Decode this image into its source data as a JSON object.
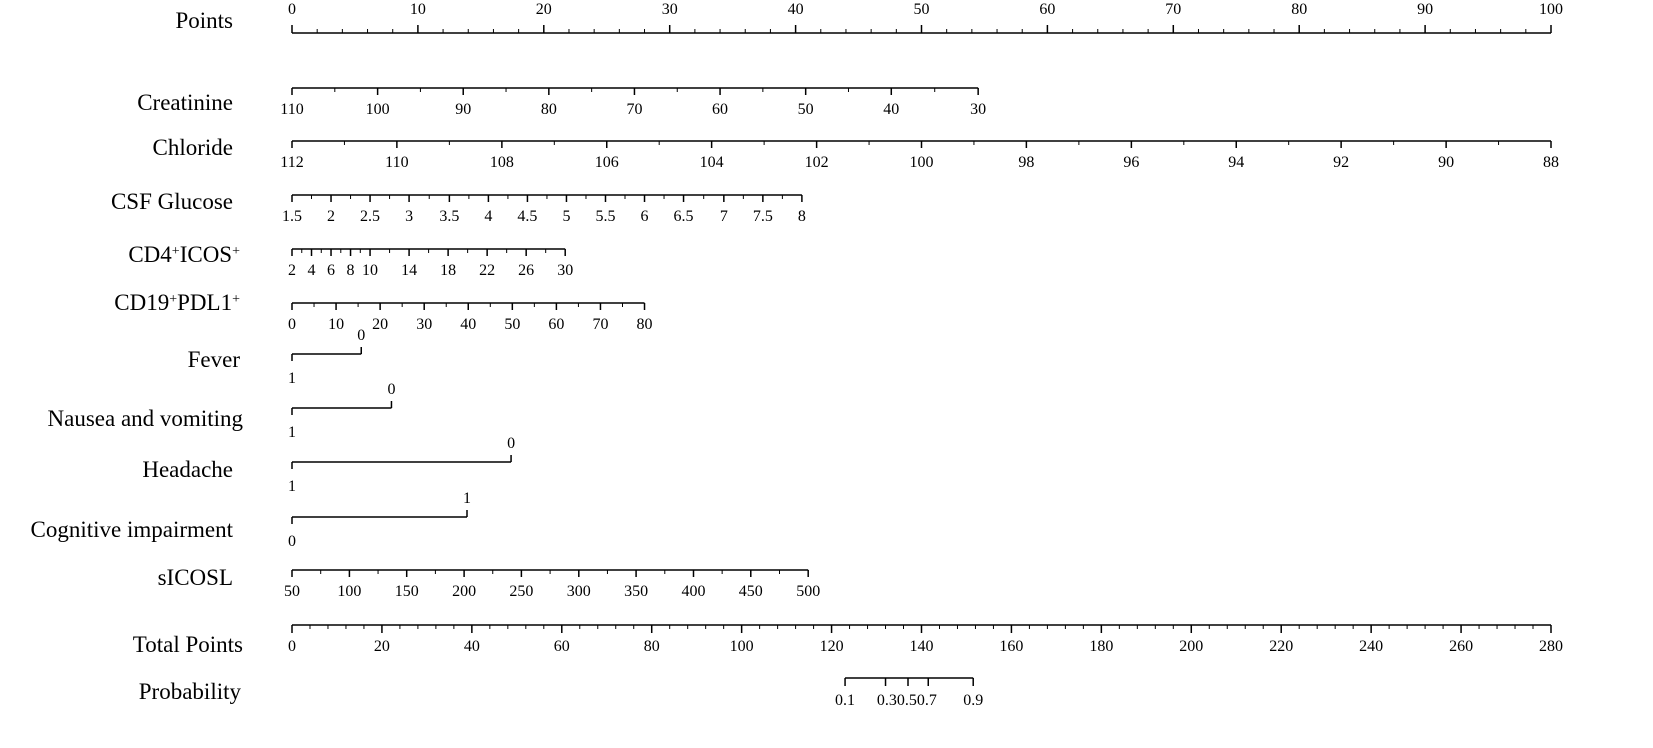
{
  "chart_data": {
    "type": "nomogram",
    "title": "",
    "rows": [
      {
        "label": "Points",
        "points": [
          0,
          100
        ],
        "ticks": [
          {
            "value": "0",
            "points": 0
          },
          {
            "value": "10",
            "points": 10
          },
          {
            "value": "20",
            "points": 20
          },
          {
            "value": "30",
            "points": 30
          },
          {
            "value": "40",
            "points": 40
          },
          {
            "value": "50",
            "points": 50
          },
          {
            "value": "60",
            "points": 60
          },
          {
            "value": "70",
            "points": 70
          },
          {
            "value": "80",
            "points": 80
          },
          {
            "value": "90",
            "points": 90
          },
          {
            "value": "100",
            "points": 100
          }
        ]
      },
      {
        "label": "Creatinine",
        "points": [
          0,
          54.5
        ],
        "ticks": [
          {
            "value": "110",
            "points": 0
          },
          {
            "value": "100",
            "points": 6.8
          },
          {
            "value": "90",
            "points": 13.6
          },
          {
            "value": "80",
            "points": 20.4
          },
          {
            "value": "70",
            "points": 27.2
          },
          {
            "value": "60",
            "points": 34.0
          },
          {
            "value": "50",
            "points": 40.8
          },
          {
            "value": "40",
            "points": 47.6
          },
          {
            "value": "30",
            "points": 54.5
          }
        ]
      },
      {
        "label": "Chloride",
        "points": [
          0,
          100
        ],
        "ticks": [
          {
            "value": "112",
            "points": 0
          },
          {
            "value": "110",
            "points": 8.33
          },
          {
            "value": "108",
            "points": 16.67
          },
          {
            "value": "106",
            "points": 25.0
          },
          {
            "value": "104",
            "points": 33.33
          },
          {
            "value": "102",
            "points": 41.67
          },
          {
            "value": "100",
            "points": 50.0
          },
          {
            "value": "98",
            "points": 58.33
          },
          {
            "value": "96",
            "points": 66.67
          },
          {
            "value": "94",
            "points": 75.0
          },
          {
            "value": "92",
            "points": 83.33
          },
          {
            "value": "90",
            "points": 91.67
          },
          {
            "value": "88",
            "points": 100
          }
        ]
      },
      {
        "label": "CSF Glucose",
        "points": [
          0,
          40.5
        ],
        "ticks": [
          {
            "value": "1.5",
            "points": 0
          },
          {
            "value": "2",
            "points": 3.1
          },
          {
            "value": "2.5",
            "points": 6.2
          },
          {
            "value": "3",
            "points": 9.3
          },
          {
            "value": "3.5",
            "points": 12.5
          },
          {
            "value": "4",
            "points": 15.6
          },
          {
            "value": "4.5",
            "points": 18.7
          },
          {
            "value": "5",
            "points": 21.8
          },
          {
            "value": "5.5",
            "points": 24.9
          },
          {
            "value": "6",
            "points": 28.0
          },
          {
            "value": "6.5",
            "points": 31.1
          },
          {
            "value": "7",
            "points": 34.3
          },
          {
            "value": "7.5",
            "points": 37.4
          },
          {
            "value": "8",
            "points": 40.5
          }
        ]
      },
      {
        "label": "CD4",
        "label_sup": "+",
        "label2": "ICOS",
        "label2_sup": "+",
        "points": [
          0,
          21.7
        ],
        "ticks": [
          {
            "value": "2",
            "points": 0
          },
          {
            "value": "4",
            "points": 1.55
          },
          {
            "value": "6",
            "points": 3.1
          },
          {
            "value": "8",
            "points": 4.65
          },
          {
            "value": "10",
            "points": 6.2
          },
          {
            "value": "14",
            "points": 9.3
          },
          {
            "value": "18",
            "points": 12.4
          },
          {
            "value": "22",
            "points": 15.5
          },
          {
            "value": "26",
            "points": 18.6
          },
          {
            "value": "30",
            "points": 21.7
          }
        ]
      },
      {
        "label": "CD19",
        "label_sup": "+",
        "label2": "PDL1",
        "label2_sup": "+",
        "points": [
          0,
          28.0
        ],
        "ticks": [
          {
            "value": "0",
            "points": 0
          },
          {
            "value": "10",
            "points": 3.5
          },
          {
            "value": "20",
            "points": 7.0
          },
          {
            "value": "30",
            "points": 10.5
          },
          {
            "value": "40",
            "points": 14.0
          },
          {
            "value": "50",
            "points": 17.5
          },
          {
            "value": "60",
            "points": 21.0
          },
          {
            "value": "70",
            "points": 24.5
          },
          {
            "value": "80",
            "points": 28.0
          }
        ]
      },
      {
        "label": "Fever",
        "points": [
          0,
          5.5
        ],
        "ticks": [
          {
            "value": "1",
            "points": 0,
            "side": "below"
          },
          {
            "value": "0",
            "points": 5.5,
            "side": "above"
          }
        ]
      },
      {
        "label": "Nausea and vomiting",
        "points": [
          0,
          7.9
        ],
        "ticks": [
          {
            "value": "1",
            "points": 0,
            "side": "below"
          },
          {
            "value": "0",
            "points": 7.9,
            "side": "above"
          }
        ]
      },
      {
        "label": "Headache",
        "points": [
          0,
          17.4
        ],
        "ticks": [
          {
            "value": "1",
            "points": 0,
            "side": "below"
          },
          {
            "value": "0",
            "points": 17.4,
            "side": "above"
          }
        ]
      },
      {
        "label": "Cognitive impairment",
        "points": [
          0,
          13.9
        ],
        "ticks": [
          {
            "value": "0",
            "points": 0,
            "side": "below"
          },
          {
            "value": "1",
            "points": 13.9,
            "side": "above"
          }
        ]
      },
      {
        "label": "sICOSL",
        "points": [
          0,
          41.0
        ],
        "ticks": [
          {
            "value": "50",
            "points": 0
          },
          {
            "value": "100",
            "points": 4.56
          },
          {
            "value": "150",
            "points": 9.11
          },
          {
            "value": "200",
            "points": 13.67
          },
          {
            "value": "250",
            "points": 18.22
          },
          {
            "value": "300",
            "points": 22.78
          },
          {
            "value": "350",
            "points": 27.33
          },
          {
            "value": "400",
            "points": 31.89
          },
          {
            "value": "450",
            "points": 36.44
          },
          {
            "value": "500",
            "points": 41.0
          }
        ]
      }
    ],
    "total_points": {
      "label": "Total Points",
      "range": [
        0,
        280
      ],
      "ticks": [
        "0",
        "20",
        "40",
        "60",
        "80",
        "100",
        "120",
        "140",
        "160",
        "180",
        "200",
        "220",
        "240",
        "260",
        "280"
      ]
    },
    "probability": {
      "label": "Probability",
      "total_points_range": [
        123,
        151.5
      ],
      "ticks": [
        {
          "value": "0.1",
          "total": 123
        },
        {
          "value": "0.3",
          "total": 132
        },
        {
          "value": "0.5",
          "total": 137
        },
        {
          "value": "0.7",
          "total": 141.5
        },
        {
          "value": "0.9",
          "total": 151.5
        }
      ],
      "tick_label_text": [
        "0.1",
        "0.30.50.7",
        "0.9"
      ]
    }
  }
}
